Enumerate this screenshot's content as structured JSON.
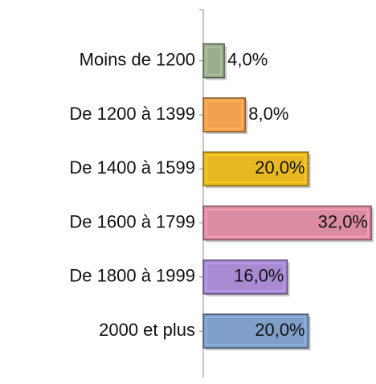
{
  "chart_data": {
    "type": "hbar",
    "categories": [
      "Moins de 1200",
      "De 1200 à 1399",
      "De 1400 à 1599",
      "De 1600 à 1799",
      "De 1800 à 1999",
      "2000 et plus"
    ],
    "values": [
      4,
      8,
      20,
      32,
      16,
      20
    ],
    "value_labels": [
      "4,0%",
      "8,0%",
      "20,0%",
      "32,0%",
      "16,0%",
      "20,0%"
    ],
    "colors": [
      "#9aae8c",
      "#f2a04e",
      "#e8b722",
      "#dc8ca2",
      "#a88ad2",
      "#7f9fc9"
    ]
  }
}
